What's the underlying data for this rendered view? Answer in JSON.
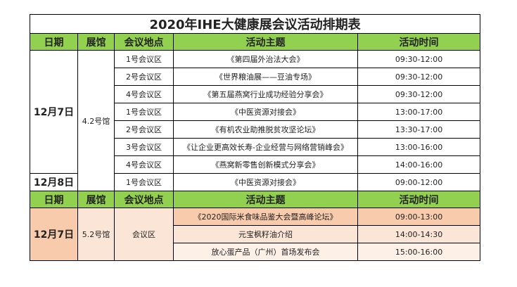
{
  "title": "2020年IHE大健康展会议活动排期表",
  "sections": [
    {
      "header": [
        "日期",
        "展馆",
        "会议地点",
        "活动主题",
        "活动时间"
      ],
      "dates": [
        "12月7日",
        "12月8日"
      ],
      "hall": "4.2号馆",
      "venues": [
        "1号会议区",
        "2号会议区",
        "4号会议区",
        "1号会议区",
        "2号会议区",
        "3号会议区",
        "4号会议区",
        "1号会议区"
      ],
      "themes": [
        "《第四届外治法大会》",
        "《世界粮油展——豆油专场》",
        "《第五届燕窝行业成功经验分享会》",
        "《中医资源对接会》",
        "《有机农业助推脱贫攻坚论坛》",
        "《让企业更高效长寿-企业经营与网络营销峰会》",
        "《燕窝新零售创新模式分享会》",
        "《中医资源对接会》"
      ],
      "times": [
        "09:30-12:00",
        "09:30-12:00",
        "09:30-12:00",
        "13:00-17:00",
        "13:30-17:00",
        "13:00-16:00",
        "14:00-16:00",
        "09:00-12:00"
      ]
    },
    {
      "header": [
        "日期",
        "展馆",
        "会议地点",
        "活动主题",
        "活动时间"
      ],
      "dates": [
        "12月7日"
      ],
      "hall": "5.2号馆",
      "venues": [
        "会议区"
      ],
      "themes": [
        "《2020国际米食味品鉴大会暨高峰论坛》",
        "元宝枫籽油介绍",
        "放心蛋产品（广州）首场发布会"
      ],
      "times": [
        "09:00-13:00",
        "14:00-14:30",
        "15:00-16:00"
      ]
    }
  ]
}
